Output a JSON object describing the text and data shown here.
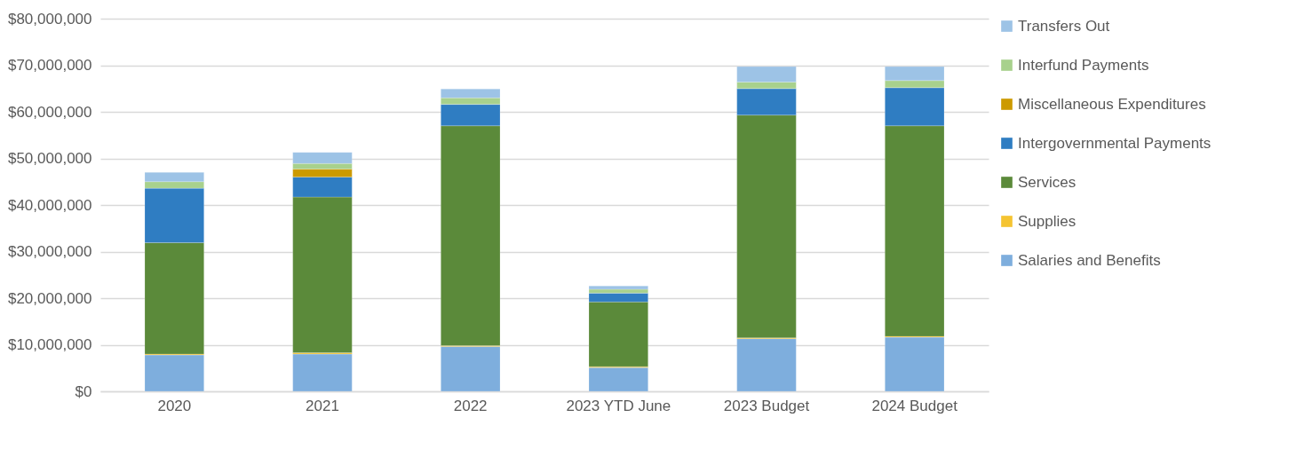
{
  "chart_data": {
    "type": "bar",
    "stacked": true,
    "categories": [
      "2020",
      "2021",
      "2022",
      "2023 YTD June",
      "2023 Budget",
      "2024 Budget"
    ],
    "series": [
      {
        "name": "Salaries and Benefits",
        "color": "#7eaedd",
        "values": [
          7800000,
          8000000,
          9600000,
          5100000,
          11300000,
          11600000
        ]
      },
      {
        "name": "Supplies",
        "color": "#f5c431",
        "values": [
          200000,
          300000,
          200000,
          200000,
          200000,
          200000
        ]
      },
      {
        "name": "Services",
        "color": "#5b8a3a",
        "values": [
          23900000,
          33400000,
          47200000,
          13900000,
          47800000,
          45200000
        ]
      },
      {
        "name": "Intergovernmental Payments",
        "color": "#2f7dc2",
        "values": [
          11700000,
          4300000,
          4600000,
          1900000,
          5700000,
          8200000
        ]
      },
      {
        "name": "Miscellaneous Expenditures",
        "color": "#cc9a00",
        "values": [
          0,
          1700000,
          0,
          0,
          0,
          0
        ]
      },
      {
        "name": "Interfund Payments",
        "color": "#a8d18d",
        "values": [
          1400000,
          1200000,
          1400000,
          800000,
          1400000,
          1500000
        ]
      },
      {
        "name": "Transfers Out",
        "color": "#9dc3e6",
        "values": [
          2000000,
          2400000,
          1900000,
          700000,
          3300000,
          3000000
        ]
      }
    ],
    "ylim": [
      0,
      80000000
    ],
    "yticks": [
      {
        "value": 0,
        "label": "$0"
      },
      {
        "value": 10000000,
        "label": "$10,000,000"
      },
      {
        "value": 20000000,
        "label": "$20,000,000"
      },
      {
        "value": 30000000,
        "label": "$30,000,000"
      },
      {
        "value": 40000000,
        "label": "$40,000,000"
      },
      {
        "value": 50000000,
        "label": "$50,000,000"
      },
      {
        "value": 60000000,
        "label": "$60,000,000"
      },
      {
        "value": 70000000,
        "label": "$70,000,000"
      },
      {
        "value": 80000000,
        "label": "$80,000,000"
      }
    ],
    "grid": "y",
    "legend": "right"
  }
}
